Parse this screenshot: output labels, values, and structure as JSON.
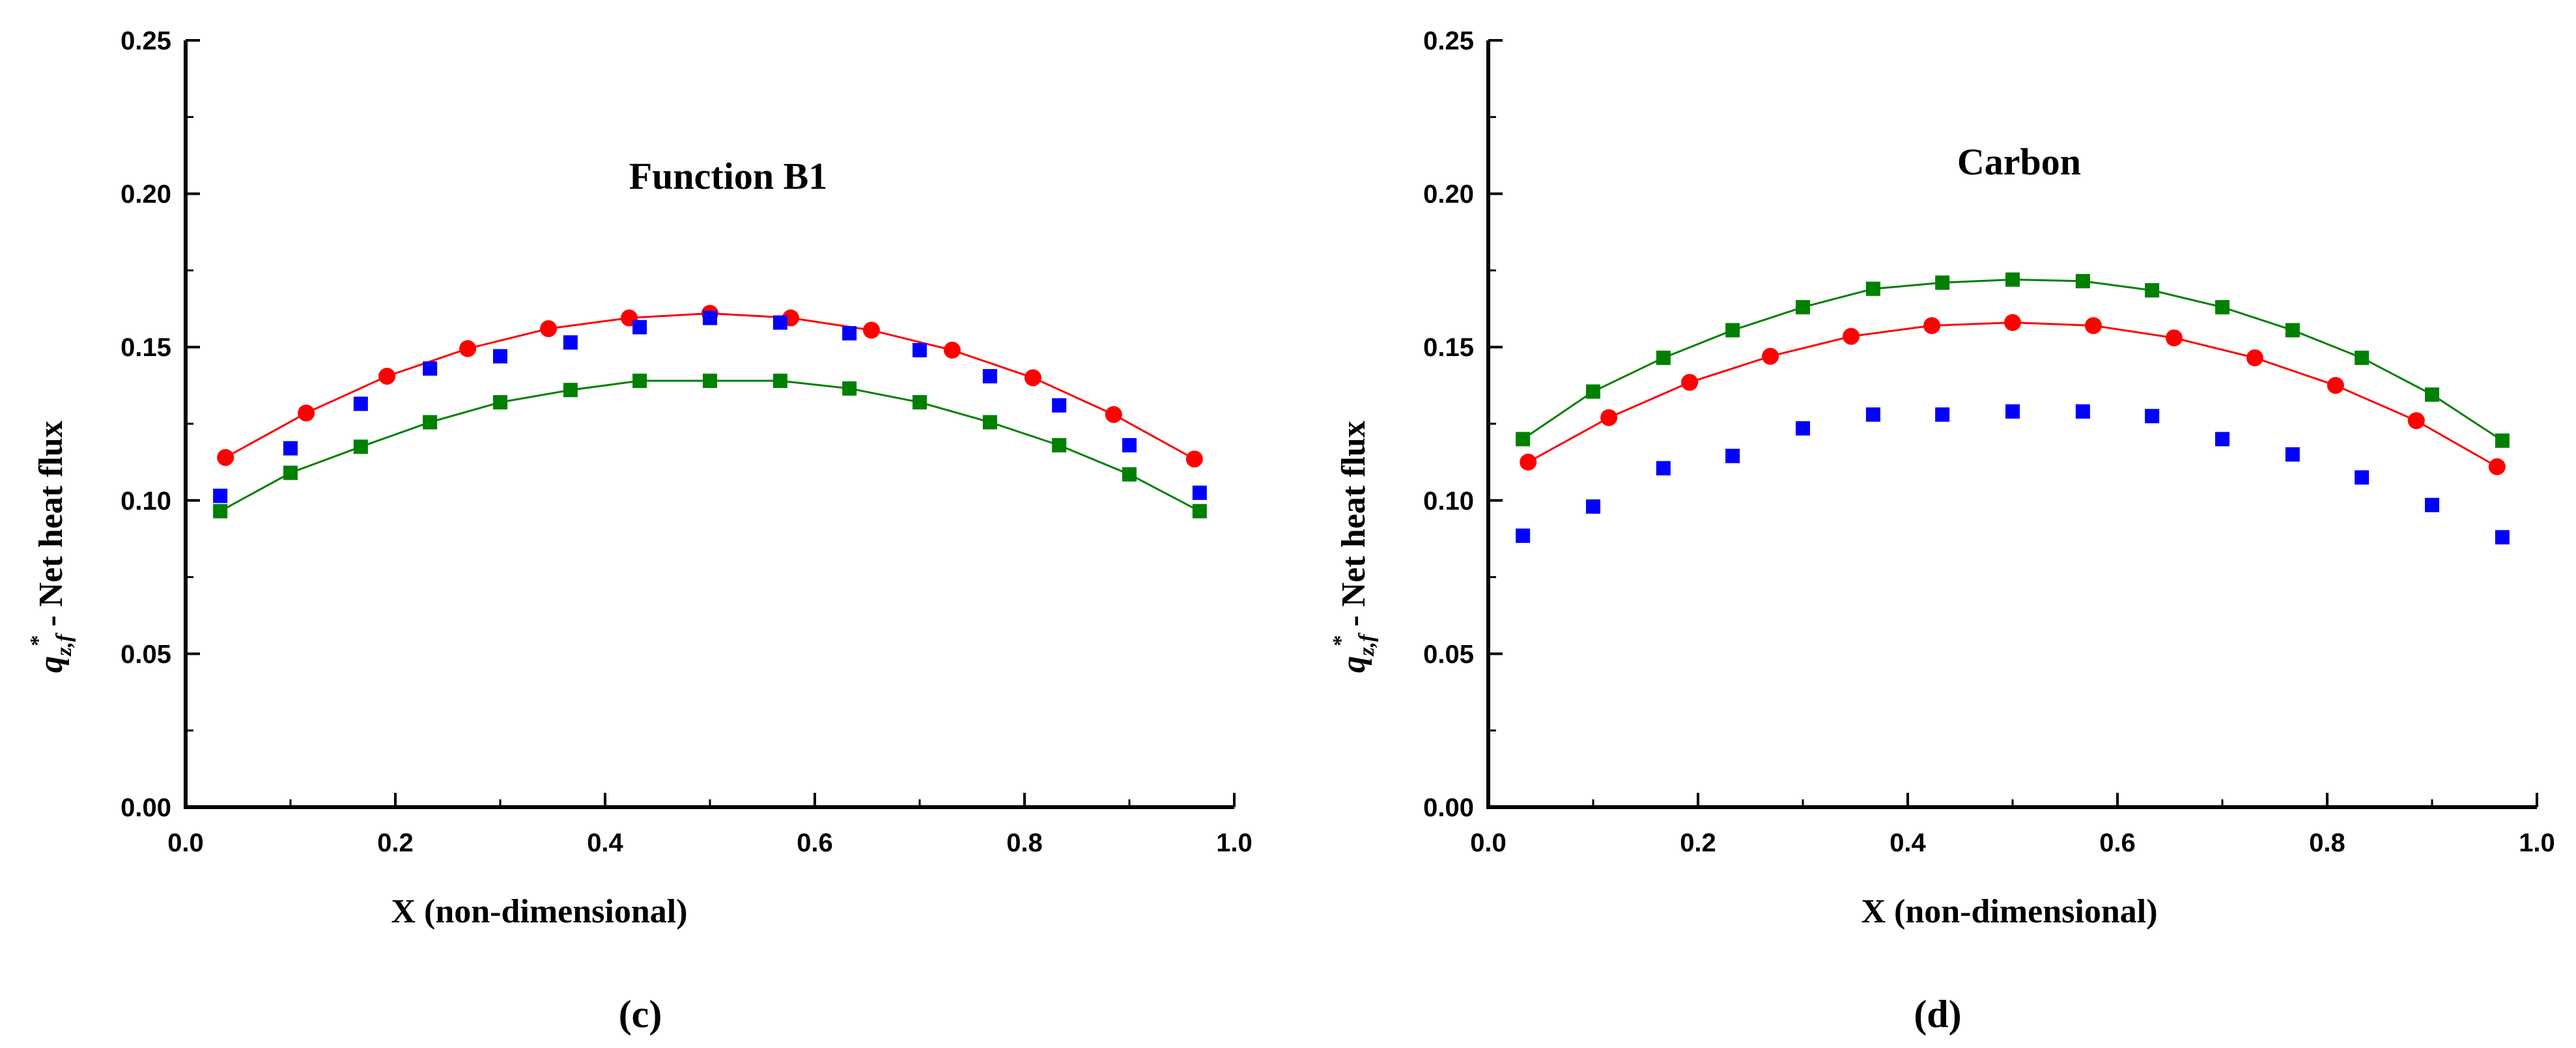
{
  "chart_data": [
    {
      "type": "scatter",
      "panel_label": "(c)",
      "title": "Function B1",
      "xlabel": "X (non-dimensional)",
      "ylabel_var": "q",
      "ylabel_sub": "z,f",
      "ylabel_sup": "*",
      "ylabel_text": " - Net heat flux",
      "xlim": [
        0.0,
        1.0
      ],
      "ylim": [
        0.0,
        0.25
      ],
      "xticks": [
        "0.0",
        "0.2",
        "0.4",
        "0.6",
        "0.8",
        "1.0"
      ],
      "yticks": [
        "0.00",
        "0.05",
        "0.10",
        "0.15",
        "0.20",
        "0.25"
      ],
      "series": [
        {
          "name": "red",
          "color": "#ff0000",
          "marker": "circle",
          "line": true,
          "x": [
            0.038,
            0.115,
            0.192,
            0.269,
            0.346,
            0.423,
            0.5,
            0.577,
            0.654,
            0.731,
            0.808,
            0.885,
            0.962
          ],
          "y": [
            0.114,
            0.1285,
            0.1405,
            0.1495,
            0.156,
            0.1595,
            0.161,
            0.1595,
            0.1555,
            0.149,
            0.14,
            0.128,
            0.1135
          ]
        },
        {
          "name": "blue",
          "color": "#0000ff",
          "marker": "square",
          "line": false,
          "x": [
            0.033,
            0.1,
            0.167,
            0.233,
            0.3,
            0.367,
            0.433,
            0.5,
            0.567,
            0.633,
            0.7,
            0.767,
            0.833,
            0.9,
            0.967
          ],
          "y": [
            0.1015,
            0.117,
            0.1315,
            0.143,
            0.147,
            0.1515,
            0.1565,
            0.1595,
            0.158,
            0.1545,
            0.149,
            0.1405,
            0.131,
            0.118,
            0.1025
          ]
        },
        {
          "name": "green",
          "color": "#008000",
          "marker": "square",
          "line": true,
          "x": [
            0.033,
            0.1,
            0.167,
            0.233,
            0.3,
            0.367,
            0.433,
            0.5,
            0.567,
            0.633,
            0.7,
            0.767,
            0.833,
            0.9,
            0.967
          ],
          "y": [
            0.0965,
            0.109,
            0.1175,
            0.1255,
            0.132,
            0.136,
            0.139,
            0.139,
            0.139,
            0.1365,
            0.132,
            0.1255,
            0.118,
            0.1085,
            0.0965
          ]
        }
      ]
    },
    {
      "type": "scatter",
      "panel_label": "(d)",
      "title": "Carbon",
      "xlabel": "X (non-dimensional)",
      "ylabel_var": "q",
      "ylabel_sub": "z,f",
      "ylabel_sup": "*",
      "ylabel_text": " - Net heat flux",
      "xlim": [
        0.0,
        1.0
      ],
      "ylim": [
        0.0,
        0.25
      ],
      "xticks": [
        "0.0",
        "0.2",
        "0.4",
        "0.6",
        "0.8",
        "1.0"
      ],
      "yticks": [
        "0.00",
        "0.05",
        "0.10",
        "0.15",
        "0.20",
        "0.25"
      ],
      "series": [
        {
          "name": "green",
          "color": "#008000",
          "marker": "square",
          "line": true,
          "x": [
            0.033,
            0.1,
            0.167,
            0.233,
            0.3,
            0.367,
            0.433,
            0.5,
            0.567,
            0.633,
            0.7,
            0.767,
            0.833,
            0.9,
            0.967
          ],
          "y": [
            0.12,
            0.1355,
            0.1465,
            0.1555,
            0.163,
            0.169,
            0.171,
            0.172,
            0.1715,
            0.1685,
            0.163,
            0.1555,
            0.1465,
            0.1345,
            0.1195
          ]
        },
        {
          "name": "red",
          "color": "#ff0000",
          "marker": "circle",
          "line": true,
          "x": [
            0.038,
            0.115,
            0.192,
            0.269,
            0.346,
            0.423,
            0.5,
            0.577,
            0.654,
            0.731,
            0.808,
            0.885,
            0.962
          ],
          "y": [
            0.1125,
            0.127,
            0.1385,
            0.147,
            0.1535,
            0.157,
            0.158,
            0.157,
            0.153,
            0.1465,
            0.1375,
            0.126,
            0.111
          ]
        },
        {
          "name": "blue",
          "color": "#0000ff",
          "marker": "square",
          "line": false,
          "x": [
            0.033,
            0.1,
            0.167,
            0.233,
            0.3,
            0.367,
            0.433,
            0.5,
            0.567,
            0.633,
            0.7,
            0.767,
            0.833,
            0.9,
            0.967
          ],
          "y": [
            0.0885,
            0.098,
            0.1105,
            0.1145,
            0.1235,
            0.128,
            0.128,
            0.129,
            0.129,
            0.1275,
            0.12,
            0.115,
            0.1075,
            0.0985,
            0.088
          ]
        }
      ]
    }
  ]
}
